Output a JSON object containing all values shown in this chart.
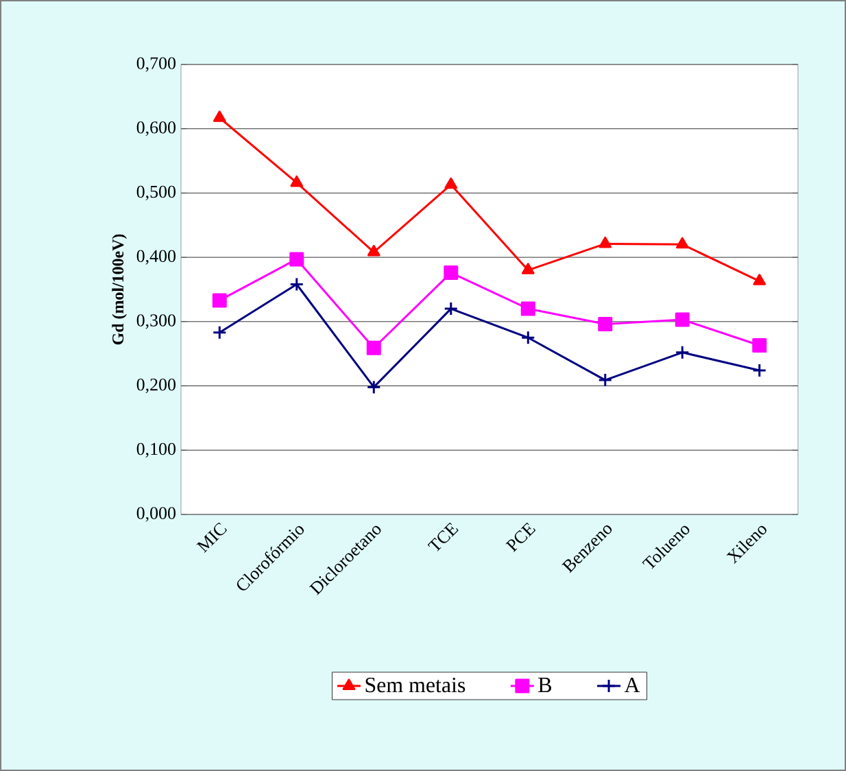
{
  "chart_data": {
    "type": "line",
    "ylabel": "Gd (mol/100eV)",
    "categories": [
      "MIC",
      "Clorofórmio",
      "Dicloroetano",
      "TCE",
      "PCE",
      "Benzeno",
      "Tolueno",
      "Xileno"
    ],
    "series": [
      {
        "name": "Sem metais",
        "color": "#ff0000",
        "marker": "triangle",
        "values": [
          0.617,
          0.516,
          0.408,
          0.513,
          0.38,
          0.421,
          0.42,
          0.363
        ]
      },
      {
        "name": "B",
        "color": "#ff00ff",
        "marker": "square",
        "values": [
          0.333,
          0.397,
          0.259,
          0.376,
          0.32,
          0.296,
          0.303,
          0.263
        ]
      },
      {
        "name": "A",
        "color": "#000080",
        "marker": "cross",
        "values": [
          0.283,
          0.358,
          0.198,
          0.32,
          0.275,
          0.209,
          0.252,
          0.224
        ]
      }
    ],
    "ylim": [
      0,
      0.7
    ],
    "yticks": [
      {
        "value": 0,
        "label": "0,000"
      },
      {
        "value": 0.1,
        "label": "0,100"
      },
      {
        "value": 0.2,
        "label": "0,200"
      },
      {
        "value": 0.3,
        "label": "0,300"
      },
      {
        "value": 0.4,
        "label": "0,400"
      },
      {
        "value": 0.5,
        "label": "0,500"
      },
      {
        "value": 0.6,
        "label": "0,600"
      },
      {
        "value": 0.7,
        "label": "0,700"
      }
    ],
    "grid": "y",
    "legend": "bottom",
    "line_style": "solid"
  }
}
